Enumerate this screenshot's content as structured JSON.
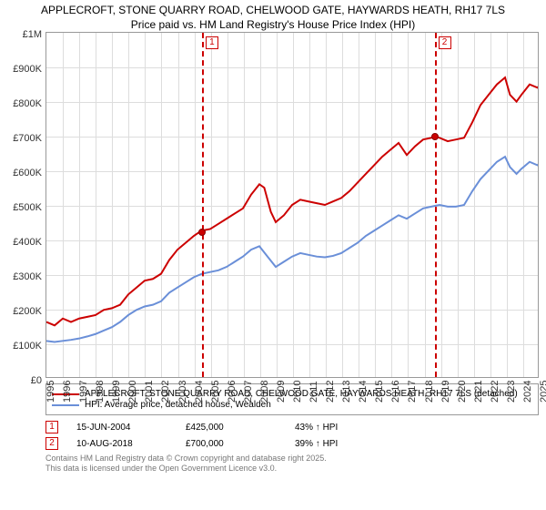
{
  "chart": {
    "type": "line",
    "title_line1": "APPLECROFT, STONE QUARRY ROAD, CHELWOOD GATE, HAYWARDS HEATH, RH17 7LS",
    "title_line2": "Price paid vs. HM Land Registry's House Price Index (HPI)",
    "background_color": "#ffffff",
    "grid_color": "#dddddd",
    "axis_color": "#999999",
    "label_fontsize": 11,
    "title_fontsize": 12,
    "y": {
      "min": 0,
      "max": 1000000,
      "step": 100000,
      "ticks": [
        "£0",
        "£100K",
        "£200K",
        "£300K",
        "£400K",
        "£500K",
        "£600K",
        "£700K",
        "£800K",
        "£900K",
        "£1M"
      ]
    },
    "x": {
      "min": 1995,
      "max": 2025,
      "step": 1,
      "ticks": [
        "1995",
        "1996",
        "1997",
        "1998",
        "1999",
        "2000",
        "2001",
        "2002",
        "2003",
        "2004",
        "2005",
        "2006",
        "2007",
        "2008",
        "2009",
        "2010",
        "2011",
        "2012",
        "2013",
        "2014",
        "2015",
        "2016",
        "2017",
        "2018",
        "2019",
        "2020",
        "2021",
        "2022",
        "2023",
        "2024",
        "2025"
      ]
    },
    "series": [
      {
        "name": "APPLECROFT, STONE QUARRY ROAD, CHELWOOD GATE, HAYWARDS HEATH, RH17 7LS (detached)",
        "color": "#cc0000",
        "line_width": 2,
        "points": [
          [
            1995,
            160000
          ],
          [
            1995.5,
            150000
          ],
          [
            1996,
            170000
          ],
          [
            1996.5,
            160000
          ],
          [
            1997,
            170000
          ],
          [
            1997.5,
            175000
          ],
          [
            1998,
            180000
          ],
          [
            1998.5,
            195000
          ],
          [
            1999,
            200000
          ],
          [
            1999.5,
            210000
          ],
          [
            2000,
            240000
          ],
          [
            2000.5,
            260000
          ],
          [
            2001,
            280000
          ],
          [
            2001.5,
            285000
          ],
          [
            2002,
            300000
          ],
          [
            2002.5,
            340000
          ],
          [
            2003,
            370000
          ],
          [
            2003.5,
            390000
          ],
          [
            2004,
            410000
          ],
          [
            2004.46,
            425000
          ],
          [
            2005,
            430000
          ],
          [
            2005.5,
            445000
          ],
          [
            2006,
            460000
          ],
          [
            2006.5,
            475000
          ],
          [
            2007,
            490000
          ],
          [
            2007.5,
            530000
          ],
          [
            2008,
            560000
          ],
          [
            2008.3,
            550000
          ],
          [
            2008.7,
            480000
          ],
          [
            2009,
            450000
          ],
          [
            2009.5,
            470000
          ],
          [
            2010,
            500000
          ],
          [
            2010.5,
            515000
          ],
          [
            2011,
            510000
          ],
          [
            2011.5,
            505000
          ],
          [
            2012,
            500000
          ],
          [
            2012.5,
            510000
          ],
          [
            2013,
            520000
          ],
          [
            2013.5,
            540000
          ],
          [
            2014,
            565000
          ],
          [
            2014.5,
            590000
          ],
          [
            2015,
            615000
          ],
          [
            2015.5,
            640000
          ],
          [
            2016,
            660000
          ],
          [
            2016.5,
            680000
          ],
          [
            2017,
            645000
          ],
          [
            2017.5,
            670000
          ],
          [
            2018,
            690000
          ],
          [
            2018.5,
            695000
          ],
          [
            2018.61,
            700000
          ],
          [
            2019,
            695000
          ],
          [
            2019.5,
            685000
          ],
          [
            2020,
            690000
          ],
          [
            2020.5,
            695000
          ],
          [
            2021,
            740000
          ],
          [
            2021.5,
            790000
          ],
          [
            2022,
            820000
          ],
          [
            2022.5,
            850000
          ],
          [
            2023,
            870000
          ],
          [
            2023.3,
            820000
          ],
          [
            2023.7,
            800000
          ],
          [
            2024,
            820000
          ],
          [
            2024.5,
            850000
          ],
          [
            2025,
            840000
          ],
          [
            2025.3,
            870000
          ]
        ]
      },
      {
        "name": "HPI: Average price, detached house, Wealden",
        "color": "#6a8fd8",
        "line_width": 2,
        "points": [
          [
            1995,
            105000
          ],
          [
            1995.5,
            102000
          ],
          [
            1996,
            105000
          ],
          [
            1996.5,
            108000
          ],
          [
            1997,
            112000
          ],
          [
            1997.5,
            118000
          ],
          [
            1998,
            125000
          ],
          [
            1998.5,
            135000
          ],
          [
            1999,
            145000
          ],
          [
            1999.5,
            160000
          ],
          [
            2000,
            180000
          ],
          [
            2000.5,
            195000
          ],
          [
            2001,
            205000
          ],
          [
            2001.5,
            210000
          ],
          [
            2002,
            220000
          ],
          [
            2002.5,
            245000
          ],
          [
            2003,
            260000
          ],
          [
            2003.5,
            275000
          ],
          [
            2004,
            290000
          ],
          [
            2004.5,
            300000
          ],
          [
            2005,
            305000
          ],
          [
            2005.5,
            310000
          ],
          [
            2006,
            320000
          ],
          [
            2006.5,
            335000
          ],
          [
            2007,
            350000
          ],
          [
            2007.5,
            370000
          ],
          [
            2008,
            380000
          ],
          [
            2008.5,
            350000
          ],
          [
            2009,
            320000
          ],
          [
            2009.5,
            335000
          ],
          [
            2010,
            350000
          ],
          [
            2010.5,
            360000
          ],
          [
            2011,
            355000
          ],
          [
            2011.5,
            350000
          ],
          [
            2012,
            348000
          ],
          [
            2012.5,
            352000
          ],
          [
            2013,
            360000
          ],
          [
            2013.5,
            375000
          ],
          [
            2014,
            390000
          ],
          [
            2014.5,
            410000
          ],
          [
            2015,
            425000
          ],
          [
            2015.5,
            440000
          ],
          [
            2016,
            455000
          ],
          [
            2016.5,
            470000
          ],
          [
            2017,
            460000
          ],
          [
            2017.5,
            475000
          ],
          [
            2018,
            490000
          ],
          [
            2018.5,
            495000
          ],
          [
            2019,
            500000
          ],
          [
            2019.5,
            495000
          ],
          [
            2020,
            495000
          ],
          [
            2020.5,
            500000
          ],
          [
            2021,
            540000
          ],
          [
            2021.5,
            575000
          ],
          [
            2022,
            600000
          ],
          [
            2022.5,
            625000
          ],
          [
            2023,
            640000
          ],
          [
            2023.3,
            610000
          ],
          [
            2023.7,
            590000
          ],
          [
            2024,
            605000
          ],
          [
            2024.5,
            625000
          ],
          [
            2025,
            615000
          ],
          [
            2025.3,
            640000
          ]
        ]
      }
    ],
    "markers": [
      {
        "id": "1",
        "x": 2004.46,
        "y": 425000,
        "color": "#cc0000",
        "dot_color": "#cc0000"
      },
      {
        "id": "2",
        "x": 2018.61,
        "y": 700000,
        "color": "#cc0000",
        "dot_color": "#cc0000"
      }
    ]
  },
  "legend": {
    "items": [
      {
        "color": "#cc0000",
        "label": "APPLECROFT, STONE QUARRY ROAD, CHELWOOD GATE, HAYWARDS HEATH, RH17 7LS (detached)"
      },
      {
        "color": "#6a8fd8",
        "label": "HPI: Average price, detached house, Wealden"
      }
    ]
  },
  "transactions": [
    {
      "id": "1",
      "date": "15-JUN-2004",
      "price": "£425,000",
      "pct": "43%",
      "arrow": "↑",
      "vs": "HPI"
    },
    {
      "id": "2",
      "date": "10-AUG-2018",
      "price": "£700,000",
      "pct": "39%",
      "arrow": "↑",
      "vs": "HPI"
    }
  ],
  "copyright": {
    "line1": "Contains HM Land Registry data © Crown copyright and database right 2025.",
    "line2": "This data is licensed under the Open Government Licence v3.0."
  }
}
